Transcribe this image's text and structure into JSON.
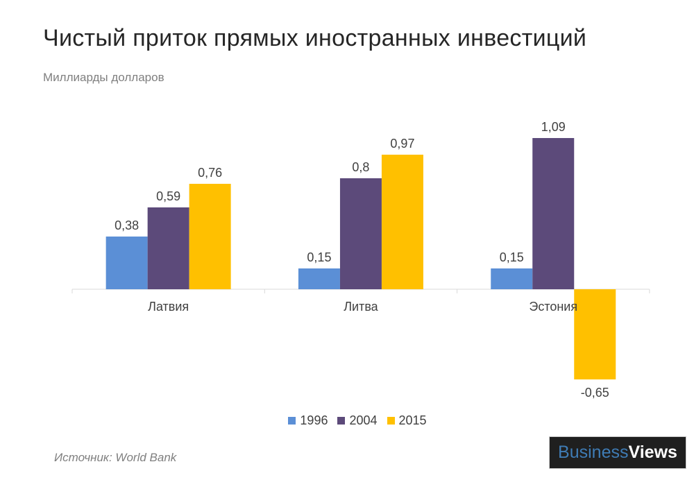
{
  "title": "Чистый приток прямых иностранных инвестиций",
  "subtitle": "Миллиарды долларов",
  "source": "Источник: World Bank",
  "logo": "BusinessViews",
  "chart_data": {
    "type": "bar",
    "title": "Чистый приток прямых иностранных инвестиций",
    "ylabel": "Миллиарды долларов",
    "categories": [
      "Латвия",
      "Литва",
      "Эстония"
    ],
    "series": [
      {
        "name": "1996",
        "color": "#5b8fd6",
        "values": [
          0.38,
          0.15,
          0.15
        ],
        "labels": [
          "0,38",
          "0,15",
          "0,15"
        ]
      },
      {
        "name": "2004",
        "color": "#5c4a7a",
        "values": [
          0.59,
          0.8,
          1.09
        ],
        "labels": [
          "0,59",
          "0,8",
          "1,09"
        ]
      },
      {
        "name": "2015",
        "color": "#ffc000",
        "values": [
          0.76,
          0.97,
          -0.65
        ],
        "labels": [
          "0,76",
          "0,97",
          "-0,65"
        ]
      }
    ],
    "grid": false,
    "legend": "bottom"
  }
}
